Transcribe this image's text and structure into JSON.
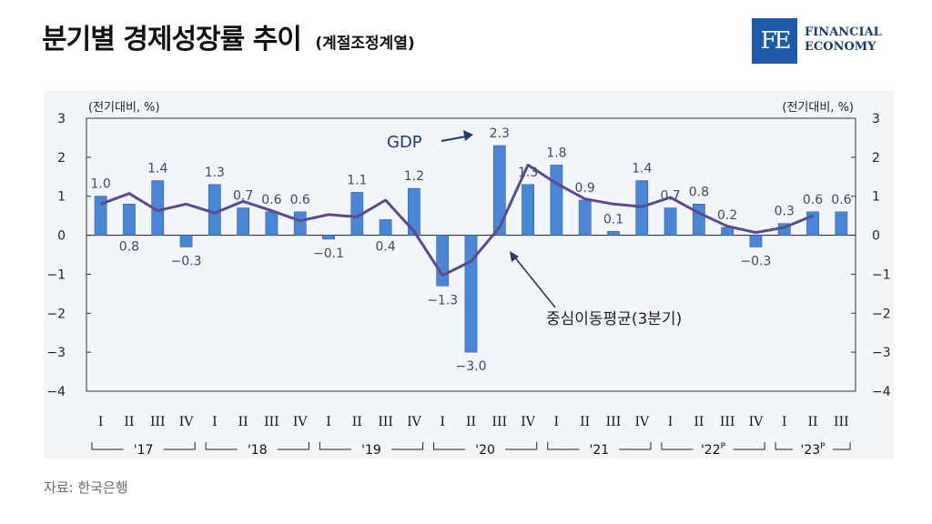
{
  "title": {
    "main": "분기별 경제성장률 추이",
    "sub": "(계절조정계열)"
  },
  "logo": {
    "mark": "FE",
    "line1": "FINANCIAL",
    "line2": "ECONOMY"
  },
  "source": "자료: 한국은행",
  "colors": {
    "bar": "#4a86d4",
    "line": "#5a4a8e",
    "annotation": "#1e3a6e",
    "axis": "#333333"
  },
  "chart_data": {
    "type": "bar",
    "left_axis_unit": "(전기대비, %)",
    "right_axis_unit": "(전기대비, %)",
    "ylim": [
      -4,
      3
    ],
    "yticks": [
      "3",
      "2",
      "1",
      "0",
      "−1",
      "−2",
      "−3",
      "−4"
    ],
    "quarters": [
      "I",
      "II",
      "III",
      "IV",
      "I",
      "II",
      "III",
      "IV",
      "I",
      "II",
      "III",
      "IV",
      "I",
      "II",
      "III",
      "IV",
      "I",
      "II",
      "III",
      "IV",
      "I",
      "II",
      "III",
      "IV",
      "I",
      "II",
      "III"
    ],
    "years": [
      {
        "label": "'17",
        "sup": ""
      },
      {
        "label": "'18",
        "sup": ""
      },
      {
        "label": "'19",
        "sup": ""
      },
      {
        "label": "'20",
        "sup": ""
      },
      {
        "label": "'21",
        "sup": ""
      },
      {
        "label": "'22",
        "sup": "P"
      },
      {
        "label": "'23",
        "sup": "P"
      }
    ],
    "series": [
      {
        "name": "GDP",
        "kind": "bar",
        "values": [
          1.0,
          0.8,
          1.4,
          -0.3,
          1.3,
          0.7,
          0.6,
          0.6,
          -0.1,
          1.1,
          0.4,
          1.2,
          -1.3,
          -3.0,
          2.3,
          1.3,
          1.8,
          0.9,
          0.1,
          1.4,
          0.7,
          0.8,
          0.2,
          -0.3,
          0.3,
          0.6,
          0.6
        ],
        "labels": [
          "1.0",
          "0.8",
          "1.4",
          "−0.3",
          "1.3",
          "0.7",
          "0.6",
          "0.6",
          "−0.1",
          "1.1",
          "0.4",
          "1.2",
          "−1.3",
          "−3.0",
          "2.3",
          "1.3",
          "1.8",
          "0.9",
          "0.1",
          "1.4",
          "0.7",
          "0.8",
          "0.2",
          "−0.3",
          "0.3",
          "0.6",
          "0.6"
        ]
      },
      {
        "name": "중심이동평균(3분기)",
        "kind": "line",
        "values": [
          0.8,
          1.07,
          0.63,
          0.8,
          0.57,
          0.87,
          0.63,
          0.37,
          0.53,
          0.47,
          0.9,
          0.1,
          -1.03,
          -0.67,
          0.2,
          1.8,
          1.33,
          0.93,
          0.8,
          0.73,
          0.97,
          0.57,
          0.23,
          0.07,
          0.2,
          0.5,
          null
        ]
      }
    ],
    "annotations": {
      "gdp": "GDP",
      "moving_average": "중심이동평균(3분기)"
    }
  }
}
